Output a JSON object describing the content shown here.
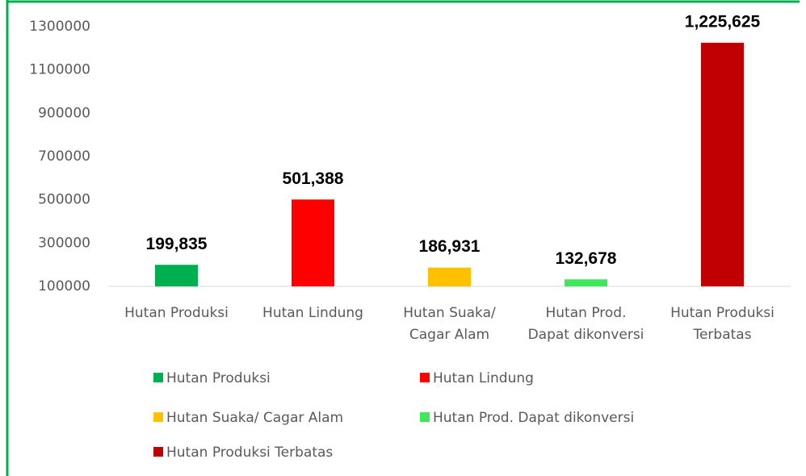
{
  "chart_data": {
    "type": "bar",
    "categories": [
      "Hutan Produksi",
      "Hutan Lindung",
      "Hutan Suaka/ Cagar Alam",
      "Hutan Prod. Dapat dikonversi",
      "Hutan Produksi Terbatas"
    ],
    "values": [
      199835,
      501388,
      186931,
      132678,
      1225625
    ],
    "value_labels": [
      "199,835",
      "501,388",
      "186,931",
      "132,678",
      "1,225,625"
    ],
    "colors": [
      "#00b050",
      "#ff0000",
      "#ffc000",
      "#3ee85a",
      "#c00000"
    ],
    "ylim": [
      100000,
      1300000
    ],
    "yticks": [
      100000,
      300000,
      500000,
      700000,
      900000,
      1100000,
      1300000
    ],
    "grid": false,
    "legend": "bottom"
  }
}
